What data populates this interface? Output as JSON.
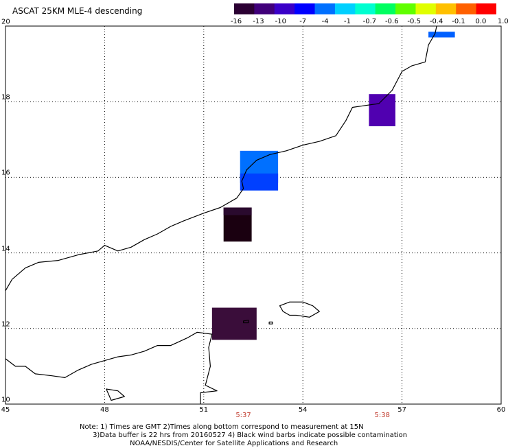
{
  "title": "ASCAT 25KM MLE-4 descending",
  "colorbar": {
    "labels": [
      "-16",
      "-13",
      "-10",
      "-7",
      "-4",
      "-1",
      "-0.7",
      "-0.6",
      "-0.5",
      "-0.4",
      "-0.1",
      "0.0",
      "1.0"
    ],
    "colors": [
      "#2b0033",
      "#40007a",
      "#3a00c8",
      "#0000ff",
      "#0070ff",
      "#00d0ff",
      "#00ffd0",
      "#00ff60",
      "#60ff00",
      "#e0ff00",
      "#ffc000",
      "#ff6000",
      "#ff0000"
    ]
  },
  "map": {
    "lon_ticks": [
      "45",
      "48",
      "51",
      "54",
      "57",
      "60"
    ],
    "lat_ticks": [
      "20",
      "18",
      "16",
      "14",
      "12",
      "10"
    ],
    "lon_range": [
      45,
      60
    ],
    "lat_range": [
      10,
      20
    ],
    "grid": "dotted",
    "times": [
      "5:37",
      "5:38"
    ],
    "time_lons": [
      52.2,
      56.4
    ],
    "cells": [
      {
        "lon": [
          57.8,
          58.6
        ],
        "lat": [
          19.7,
          19.85
        ],
        "value": -4,
        "color": "#0060ff"
      },
      {
        "lon": [
          56.0,
          56.8
        ],
        "lat": [
          17.35,
          18.2
        ],
        "value": -13,
        "color": "#5000b0"
      },
      {
        "lon": [
          52.1,
          53.25
        ],
        "lat": [
          15.85,
          16.7
        ],
        "value": -4,
        "color": "#0070ff"
      },
      {
        "lon": [
          52.1,
          53.25
        ],
        "lat": [
          15.65,
          16.1
        ],
        "value": -7,
        "color": "#0040ff"
      },
      {
        "lon": [
          51.6,
          52.45
        ],
        "lat": [
          14.3,
          15.2
        ],
        "value": -16,
        "color": "#1a0010"
      },
      {
        "lon": [
          51.6,
          52.45
        ],
        "lat": [
          15.0,
          15.2
        ],
        "value": -16,
        "color": "#2a0a2e"
      },
      {
        "lon": [
          51.25,
          52.6
        ],
        "lat": [
          11.7,
          12.55
        ],
        "value": -16,
        "color": "#3a0d3a"
      }
    ]
  },
  "note": {
    "line1": "Note: 1) Times are GMT 2)Times along bottom correspond to measurement at 15N",
    "line2": "      3)Data buffer is 22 hrs from 20160527 4) Black wind barbs indicate possible contamination",
    "line3": "                       NOAA/NESDIS/Center for Satellite Applications and Research"
  }
}
